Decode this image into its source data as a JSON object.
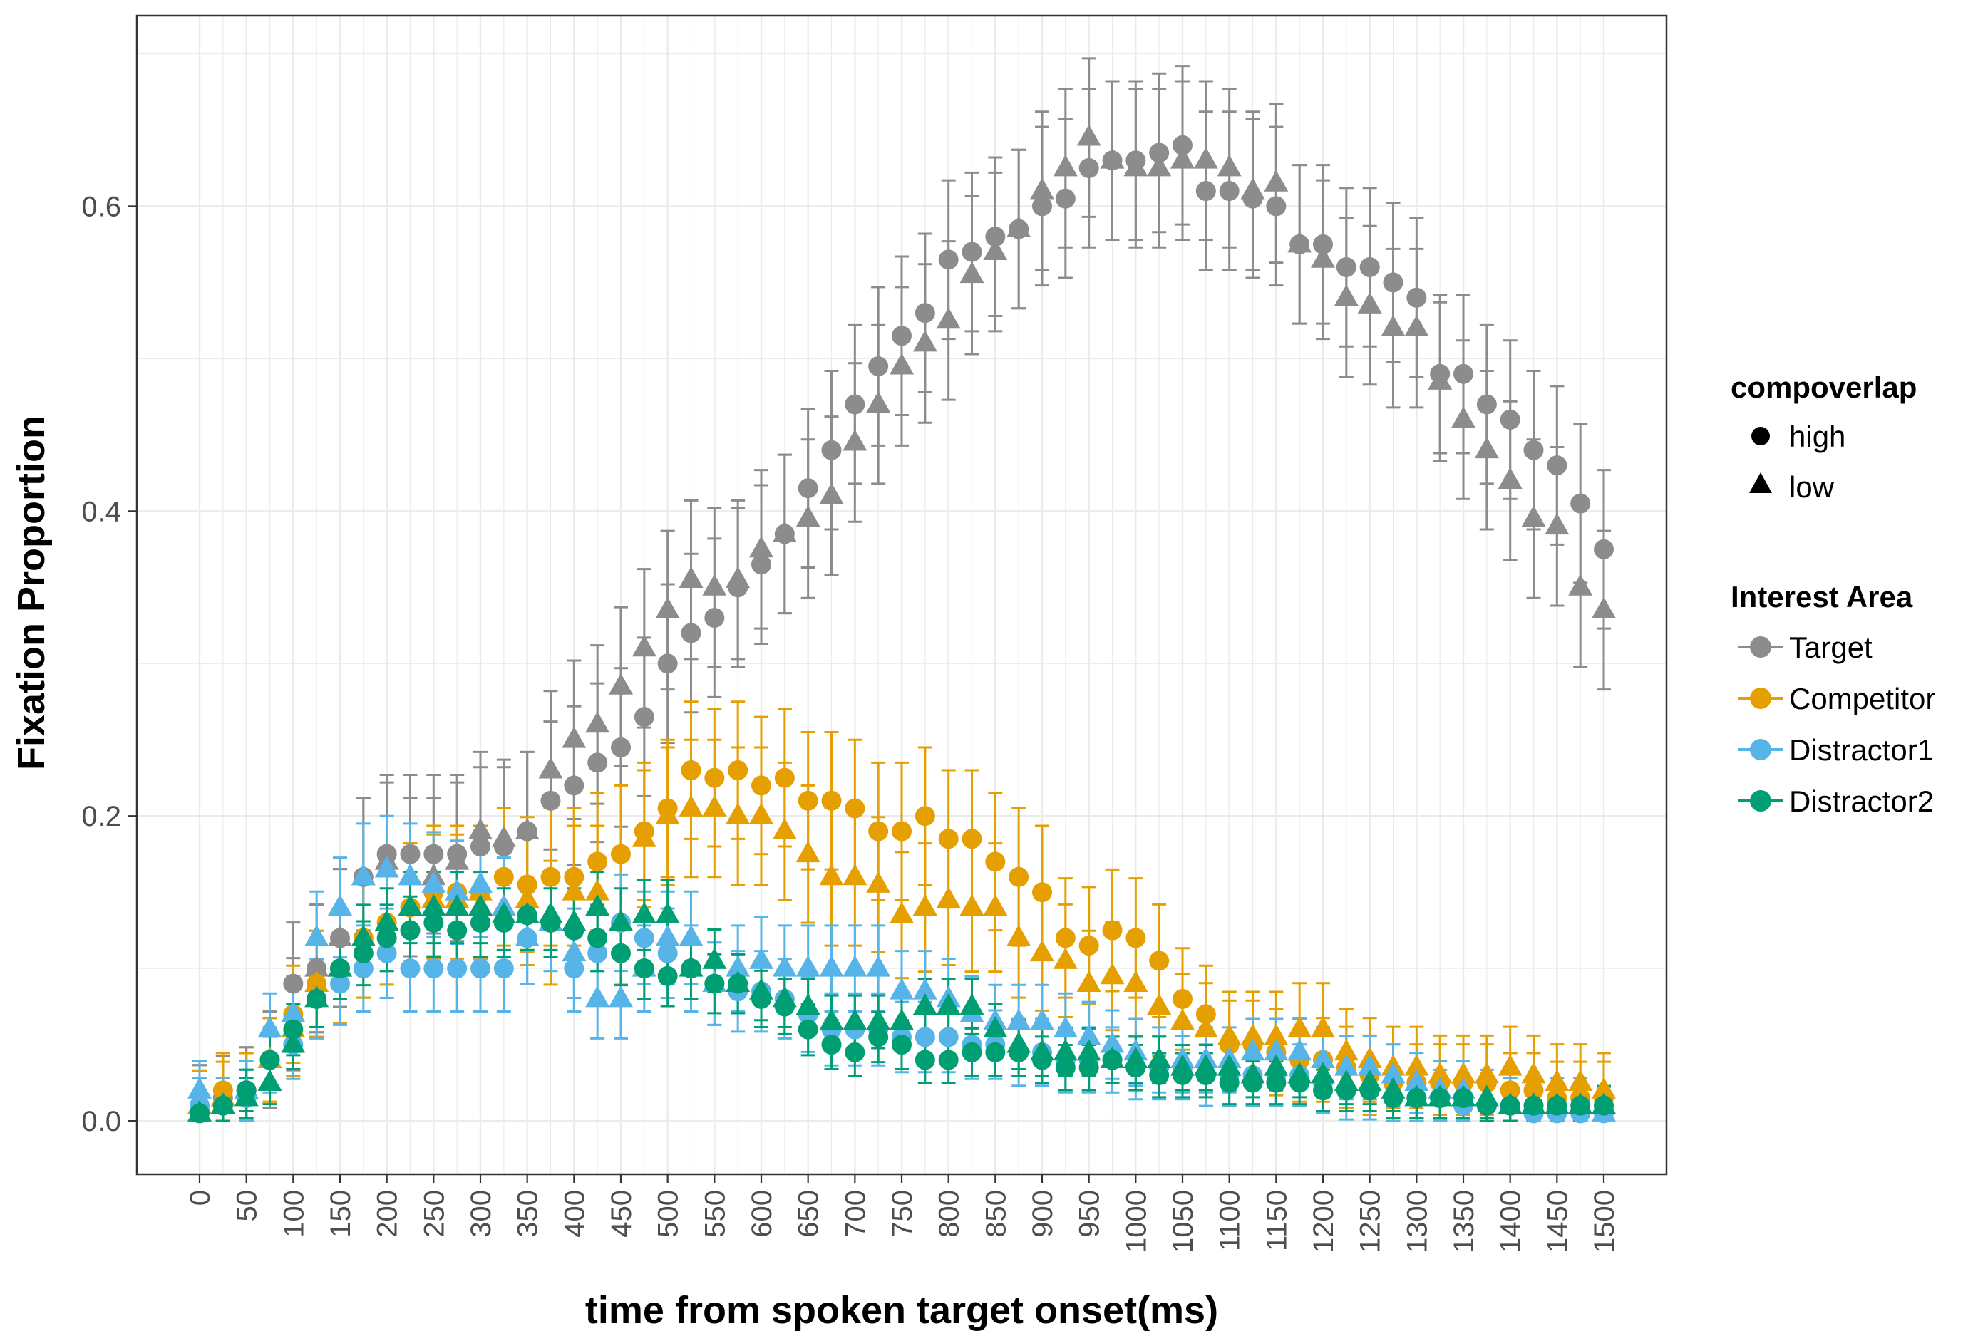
{
  "chart_data": {
    "type": "scatter",
    "xlabel": "time from spoken target onset(ms)",
    "ylabel": "Fixation Proportion",
    "xlim": [
      -67,
      1567
    ],
    "ylim": [
      -0.035,
      0.725
    ],
    "x_ticks": [
      0,
      50,
      100,
      150,
      200,
      250,
      300,
      350,
      400,
      450,
      500,
      550,
      600,
      650,
      700,
      750,
      800,
      850,
      900,
      950,
      1000,
      1050,
      1100,
      1150,
      1200,
      1250,
      1300,
      1350,
      1400,
      1450,
      1500
    ],
    "x_tick_labels": [
      "0",
      "50",
      "100",
      "150",
      "200",
      "250",
      "300",
      "350",
      "400",
      "450",
      "500",
      "550",
      "600",
      "650",
      "700",
      "750",
      "800",
      "850",
      "900",
      "950",
      "1000",
      "1050",
      "1100",
      "1150",
      "1200",
      "1250",
      "1300",
      "1350",
      "1400",
      "1450",
      "1500"
    ],
    "y_ticks": [
      0.0,
      0.2,
      0.4,
      0.6
    ],
    "y_tick_labels": [
      "0.0",
      "0.2",
      "0.4",
      "0.6"
    ],
    "grid": true,
    "x": [
      0,
      25,
      50,
      75,
      100,
      125,
      150,
      175,
      200,
      225,
      250,
      275,
      300,
      325,
      350,
      375,
      400,
      425,
      450,
      475,
      500,
      525,
      550,
      575,
      600,
      625,
      650,
      675,
      700,
      725,
      750,
      775,
      800,
      825,
      850,
      875,
      900,
      925,
      950,
      975,
      1000,
      1025,
      1050,
      1075,
      1100,
      1125,
      1150,
      1175,
      1200,
      1225,
      1250,
      1275,
      1300,
      1325,
      1350,
      1375,
      1400,
      1425,
      1450,
      1475,
      1500
    ],
    "error_bar_halfwidth": {
      "Target": 0.052,
      "Competitor": 0.045,
      "Distractor1": 0.035,
      "Distractor2": 0.025
    },
    "legend": {
      "placement": "right",
      "shape_title": "compoverlap",
      "shape_entries": [
        {
          "label": "high",
          "shape": "circle"
        },
        {
          "label": "low",
          "shape": "triangle"
        }
      ],
      "color_title": "Interest Area",
      "color_entries": [
        {
          "label": "Target",
          "color": "#8c8c8c"
        },
        {
          "label": "Competitor",
          "color": "#e69f00"
        },
        {
          "label": "Distractor1",
          "color": "#56b4e9"
        },
        {
          "label": "Distractor2",
          "color": "#009e73"
        }
      ]
    },
    "series": [
      {
        "area": "Target",
        "compoverlap": "high",
        "color": "#8c8c8c",
        "shape": "circle",
        "values": [
          0.01,
          0.015,
          0.02,
          0.04,
          0.09,
          0.1,
          0.12,
          0.16,
          0.175,
          0.175,
          0.175,
          0.175,
          0.18,
          0.18,
          0.19,
          0.21,
          0.22,
          0.235,
          0.245,
          0.265,
          0.3,
          0.32,
          0.33,
          0.35,
          0.365,
          0.385,
          0.415,
          0.44,
          0.47,
          0.495,
          0.515,
          0.53,
          0.565,
          0.57,
          0.58,
          0.585,
          0.6,
          0.605,
          0.625,
          0.63,
          0.63,
          0.635,
          0.64,
          0.61,
          0.61,
          0.605,
          0.6,
          0.575,
          0.575,
          0.56,
          0.56,
          0.55,
          0.54,
          0.49,
          0.49,
          0.47,
          0.46,
          0.44,
          0.43,
          0.405,
          0.375
        ]
      },
      {
        "area": "Target",
        "compoverlap": "low",
        "color": "#8c8c8c",
        "shape": "triangle",
        "values": [
          0.01,
          0.015,
          0.02,
          0.04,
          0.07,
          0.1,
          0.12,
          0.16,
          0.17,
          0.16,
          0.16,
          0.17,
          0.19,
          0.185,
          0.19,
          0.23,
          0.25,
          0.26,
          0.285,
          0.31,
          0.335,
          0.355,
          0.35,
          0.355,
          0.375,
          0.385,
          0.395,
          0.41,
          0.445,
          0.47,
          0.495,
          0.51,
          0.525,
          0.555,
          0.57,
          0.585,
          0.61,
          0.625,
          0.645,
          0.63,
          0.625,
          0.625,
          0.63,
          0.63,
          0.625,
          0.61,
          0.615,
          0.575,
          0.565,
          0.54,
          0.535,
          0.52,
          0.52,
          0.485,
          0.46,
          0.44,
          0.42,
          0.395,
          0.39,
          0.35,
          0.335
        ]
      },
      {
        "area": "Competitor",
        "compoverlap": "high",
        "color": "#e69f00",
        "shape": "circle",
        "values": [
          0.01,
          0.02,
          0.02,
          0.04,
          0.07,
          0.09,
          0.1,
          0.12,
          0.13,
          0.14,
          0.15,
          0.15,
          0.15,
          0.16,
          0.155,
          0.16,
          0.16,
          0.17,
          0.175,
          0.19,
          0.205,
          0.23,
          0.225,
          0.23,
          0.22,
          0.225,
          0.21,
          0.21,
          0.205,
          0.19,
          0.19,
          0.2,
          0.185,
          0.185,
          0.17,
          0.16,
          0.15,
          0.12,
          0.115,
          0.125,
          0.12,
          0.105,
          0.08,
          0.07,
          0.05,
          0.05,
          0.045,
          0.04,
          0.04,
          0.035,
          0.03,
          0.025,
          0.025,
          0.025,
          0.025,
          0.025,
          0.02,
          0.02,
          0.015,
          0.015,
          0.015
        ]
      },
      {
        "area": "Competitor",
        "compoverlap": "low",
        "color": "#e69f00",
        "shape": "triangle",
        "values": [
          0.01,
          0.015,
          0.02,
          0.04,
          0.06,
          0.09,
          0.1,
          0.12,
          0.13,
          0.14,
          0.145,
          0.145,
          0.15,
          0.14,
          0.145,
          0.13,
          0.15,
          0.15,
          0.13,
          0.185,
          0.2,
          0.205,
          0.205,
          0.2,
          0.2,
          0.19,
          0.175,
          0.16,
          0.16,
          0.155,
          0.135,
          0.14,
          0.145,
          0.14,
          0.14,
          0.12,
          0.11,
          0.105,
          0.09,
          0.095,
          0.09,
          0.075,
          0.065,
          0.06,
          0.055,
          0.055,
          0.055,
          0.06,
          0.06,
          0.045,
          0.04,
          0.035,
          0.035,
          0.03,
          0.03,
          0.03,
          0.035,
          0.03,
          0.025,
          0.025,
          0.02
        ]
      },
      {
        "area": "Distractor1",
        "compoverlap": "high",
        "color": "#56b4e9",
        "shape": "circle",
        "values": [
          0.01,
          0.01,
          0.015,
          0.04,
          0.05,
          0.08,
          0.09,
          0.1,
          0.11,
          0.1,
          0.1,
          0.1,
          0.1,
          0.1,
          0.12,
          0.13,
          0.1,
          0.11,
          0.13,
          0.12,
          0.11,
          0.1,
          0.09,
          0.085,
          0.085,
          0.08,
          0.07,
          0.06,
          0.06,
          0.06,
          0.055,
          0.055,
          0.055,
          0.05,
          0.05,
          0.045,
          0.045,
          0.04,
          0.04,
          0.04,
          0.035,
          0.035,
          0.035,
          0.03,
          0.03,
          0.03,
          0.03,
          0.03,
          0.025,
          0.02,
          0.02,
          0.015,
          0.015,
          0.015,
          0.01,
          0.01,
          0.01,
          0.005,
          0.005,
          0.005,
          0.005
        ]
      },
      {
        "area": "Distractor1",
        "compoverlap": "low",
        "color": "#56b4e9",
        "shape": "triangle",
        "values": [
          0.02,
          0.01,
          0.02,
          0.06,
          0.07,
          0.12,
          0.14,
          0.16,
          0.165,
          0.16,
          0.155,
          0.15,
          0.155,
          0.14,
          0.12,
          0.13,
          0.11,
          0.08,
          0.08,
          0.1,
          0.12,
          0.12,
          0.09,
          0.1,
          0.105,
          0.1,
          0.1,
          0.1,
          0.1,
          0.1,
          0.085,
          0.085,
          0.08,
          0.07,
          0.065,
          0.065,
          0.065,
          0.06,
          0.055,
          0.05,
          0.045,
          0.04,
          0.04,
          0.04,
          0.04,
          0.045,
          0.045,
          0.045,
          0.04,
          0.035,
          0.035,
          0.03,
          0.025,
          0.02,
          0.02,
          0.015,
          0.01,
          0.01,
          0.01,
          0.01,
          0.005
        ]
      },
      {
        "area": "Distractor2",
        "compoverlap": "high",
        "color": "#009e73",
        "shape": "circle",
        "values": [
          0.005,
          0.01,
          0.02,
          0.04,
          0.06,
          0.08,
          0.1,
          0.11,
          0.12,
          0.125,
          0.13,
          0.125,
          0.13,
          0.13,
          0.135,
          0.13,
          0.125,
          0.12,
          0.11,
          0.1,
          0.095,
          0.1,
          0.09,
          0.09,
          0.08,
          0.075,
          0.06,
          0.05,
          0.045,
          0.055,
          0.05,
          0.04,
          0.04,
          0.045,
          0.045,
          0.045,
          0.04,
          0.035,
          0.035,
          0.04,
          0.035,
          0.03,
          0.03,
          0.03,
          0.025,
          0.025,
          0.025,
          0.025,
          0.02,
          0.02,
          0.02,
          0.015,
          0.015,
          0.015,
          0.015,
          0.01,
          0.01,
          0.01,
          0.01,
          0.01,
          0.01
        ]
      },
      {
        "area": "Distractor2",
        "compoverlap": "low",
        "color": "#009e73",
        "shape": "triangle",
        "values": [
          0.005,
          0.01,
          0.015,
          0.025,
          0.05,
          0.08,
          0.1,
          0.12,
          0.13,
          0.14,
          0.14,
          0.14,
          0.14,
          0.135,
          0.135,
          0.135,
          0.13,
          0.14,
          0.13,
          0.135,
          0.135,
          0.1,
          0.105,
          0.09,
          0.085,
          0.08,
          0.075,
          0.065,
          0.065,
          0.065,
          0.065,
          0.075,
          0.075,
          0.075,
          0.06,
          0.05,
          0.045,
          0.045,
          0.045,
          0.04,
          0.04,
          0.04,
          0.035,
          0.035,
          0.035,
          0.03,
          0.035,
          0.03,
          0.03,
          0.025,
          0.025,
          0.02,
          0.015,
          0.015,
          0.015,
          0.015,
          0.01,
          0.01,
          0.01,
          0.01,
          0.01
        ]
      }
    ]
  }
}
